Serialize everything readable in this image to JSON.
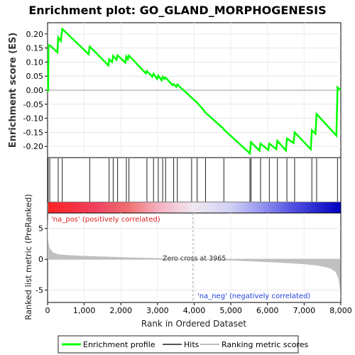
{
  "chart_data": {
    "type": "line",
    "title": "Enrichment plot: GO_GLAND_MORPHOGENESIS",
    "xlabel": "Rank in Ordered Dataset",
    "es_panel": {
      "ylabel": "Enrichment score (ES)",
      "ylim": [
        -0.24,
        0.24
      ],
      "yticks": [
        -0.2,
        -0.15,
        -0.1,
        -0.05,
        0.0,
        0.05,
        0.1,
        0.15,
        0.2
      ],
      "ytick_labels": [
        "-0.20",
        "-0.15",
        "-0.10",
        "-0.05",
        "0.00",
        "0.05",
        "0.10",
        "0.15",
        "0.20"
      ],
      "series": [
        {
          "name": "Enrichment profile",
          "color": "#00ff00",
          "x": [
            0,
            15,
            25,
            60,
            270,
            290,
            360,
            400,
            1120,
            1150,
            1660,
            1680,
            1760,
            1790,
            1880,
            1910,
            2120,
            2150,
            2190,
            2220,
            2680,
            2710,
            2860,
            2890,
            2990,
            3020,
            3110,
            3140,
            3190,
            3220,
            3410,
            3440,
            3510,
            3540,
            4040,
            4080,
            4280,
            4310,
            4780,
            4810,
            5520,
            5550,
            5780,
            5810,
            6020,
            6050,
            6240,
            6270,
            6500,
            6530,
            6710,
            6740,
            7180,
            7210,
            7310,
            7340,
            7880,
            7910,
            7995
          ],
          "y": [
            0.0,
            -0.005,
            0.16,
            0.16,
            0.135,
            0.188,
            0.175,
            0.218,
            0.128,
            0.155,
            0.088,
            0.11,
            0.1,
            0.122,
            0.108,
            0.124,
            0.098,
            0.12,
            0.11,
            0.123,
            0.06,
            0.068,
            0.048,
            0.058,
            0.04,
            0.052,
            0.035,
            0.048,
            0.04,
            0.045,
            0.018,
            0.022,
            0.012,
            0.02,
            -0.04,
            -0.044,
            -0.075,
            -0.08,
            -0.135,
            -0.14,
            -0.225,
            -0.185,
            -0.215,
            -0.19,
            -0.213,
            -0.19,
            -0.21,
            -0.18,
            -0.215,
            -0.172,
            -0.188,
            -0.15,
            -0.21,
            -0.143,
            -0.155,
            -0.085,
            -0.162,
            0.01,
            0.0
          ]
        }
      ]
    },
    "hits_panel": {
      "name": "Hits",
      "hit_ranks": [
        15,
        60,
        290,
        400,
        1150,
        1680,
        1790,
        1910,
        2150,
        2220,
        2710,
        2890,
        3020,
        3140,
        3220,
        3440,
        3540,
        3930,
        4080,
        4310,
        4810,
        5520,
        5550,
        5810,
        6050,
        6270,
        6530,
        6740,
        7210,
        7340,
        7910
      ]
    },
    "heatmap_bar": {
      "stops": [
        {
          "x": 0,
          "color": "#ff2222"
        },
        {
          "x": 1300,
          "color": "#f04060"
        },
        {
          "x": 2200,
          "color": "#f07070"
        },
        {
          "x": 3000,
          "color": "#f4b0c0"
        },
        {
          "x": 3965,
          "color": "#f0e8f0"
        },
        {
          "x": 5000,
          "color": "#d0d0f4"
        },
        {
          "x": 5900,
          "color": "#9090f0"
        },
        {
          "x": 6700,
          "color": "#5050e0"
        },
        {
          "x": 7995,
          "color": "#0000c0"
        }
      ]
    },
    "metric_panel": {
      "ylabel": "Ranked list metric (PreRanked)",
      "name": "Ranking metric scores",
      "ylim": [
        -7,
        7.5
      ],
      "yticks": [
        -5,
        0,
        5
      ],
      "ytick_labels": [
        "-5",
        "0",
        "5"
      ],
      "pos_label": "'na_pos' (positively correlated)",
      "neg_label": "'na_neg' (negatively correlated)",
      "zero_cross_label": "Zero cross at 3965",
      "zero_cross": 3965,
      "fill_color": "#c0c0c0",
      "profile": {
        "x": [
          0,
          5,
          20,
          60,
          150,
          300,
          600,
          1000,
          1500,
          2000,
          2500,
          3000,
          3500,
          3965,
          4500,
          5000,
          5500,
          6000,
          6500,
          7000,
          7400,
          7700,
          7850,
          7930,
          7970,
          7995
        ],
        "y": [
          7.0,
          5.5,
          3.0,
          1.8,
          1.1,
          0.8,
          0.65,
          0.55,
          0.45,
          0.35,
          0.25,
          0.18,
          0.08,
          0.0,
          -0.1,
          -0.2,
          -0.32,
          -0.45,
          -0.6,
          -0.8,
          -1.05,
          -1.45,
          -2.0,
          -3.0,
          -4.5,
          -6.5
        ]
      }
    },
    "xaxis": {
      "xlim": [
        0,
        8000
      ],
      "xticks": [
        0,
        1000,
        2000,
        3000,
        4000,
        5000,
        6000,
        7000,
        8000
      ],
      "xtick_labels": [
        "0",
        "1,000",
        "2,000",
        "3,000",
        "4,000",
        "5,000",
        "6,000",
        "7,000",
        "8,000"
      ]
    },
    "legend": {
      "placement": "bottom",
      "items": [
        {
          "label": "Enrichment profile",
          "color": "#00ff00",
          "kind": "line-thick"
        },
        {
          "label": "Hits",
          "color": "#555555",
          "kind": "line"
        },
        {
          "label": "Ranking metric scores",
          "color": "#c0c0c0",
          "kind": "line"
        }
      ]
    }
  }
}
